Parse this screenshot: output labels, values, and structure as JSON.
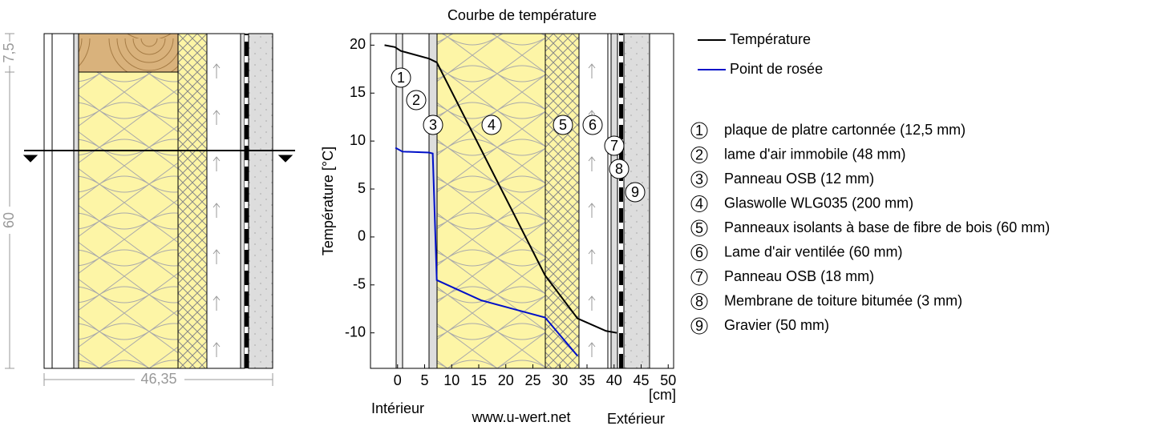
{
  "chart_data": {
    "type": "line",
    "title": "Courbe de température",
    "ylabel": "Température [°C]",
    "xunit": "[cm]",
    "notes": [
      "Intérieur",
      "www.u-wert.net",
      "Extérieur"
    ],
    "xlim": [
      -5,
      51
    ],
    "xticks": [
      0,
      5,
      10,
      15,
      20,
      25,
      30,
      35,
      40,
      45,
      50
    ],
    "ylim": [
      -13.7,
      21.2
    ],
    "yticks": [
      -10,
      -5,
      0,
      5,
      10,
      15,
      20
    ],
    "grid": false,
    "series": [
      {
        "name": "Température",
        "color": "#000000",
        "x": [
          -2.4,
          -0.5,
          0.6,
          5.8,
          7.25,
          27.25,
          33.25,
          38.5,
          40.5
        ],
        "values": [
          20,
          19.8,
          19.4,
          18.6,
          18.2,
          -4.0,
          -8.5,
          -9.8,
          -10
        ]
      },
      {
        "name": "Point de rosée",
        "color": "#0010c8",
        "x": [
          -0.4,
          0.9,
          5.8,
          6.5,
          7.25,
          15.4,
          27.25,
          33.25
        ],
        "values": [
          9.3,
          8.9,
          8.8,
          8.7,
          -4.5,
          -6.6,
          -8.4,
          -12.4
        ]
      }
    ]
  },
  "section": {
    "dimensions": [
      "7,5",
      "60",
      "46,35"
    ]
  },
  "layers": [
    {
      "number": "1",
      "name": "plaque de platre cartonnée (12,5 mm)"
    },
    {
      "number": "2",
      "name": "lame d'air immobile (48 mm)"
    },
    {
      "number": "3",
      "name": "Panneau OSB (12 mm)"
    },
    {
      "number": "4",
      "name": "Glaswolle WLG035 (200 mm)"
    },
    {
      "number": "5",
      "name": "Panneaux isolants à base de fibre de bois (60 mm)"
    },
    {
      "number": "6",
      "name": "Lame d'air ventilée (60 mm)"
    },
    {
      "number": "7",
      "name": "Panneau OSB (18 mm)"
    },
    {
      "number": "8",
      "name": "Membrane de toiture bitumée (3 mm)"
    },
    {
      "number": "9",
      "name": "Gravier (50 mm)"
    }
  ]
}
